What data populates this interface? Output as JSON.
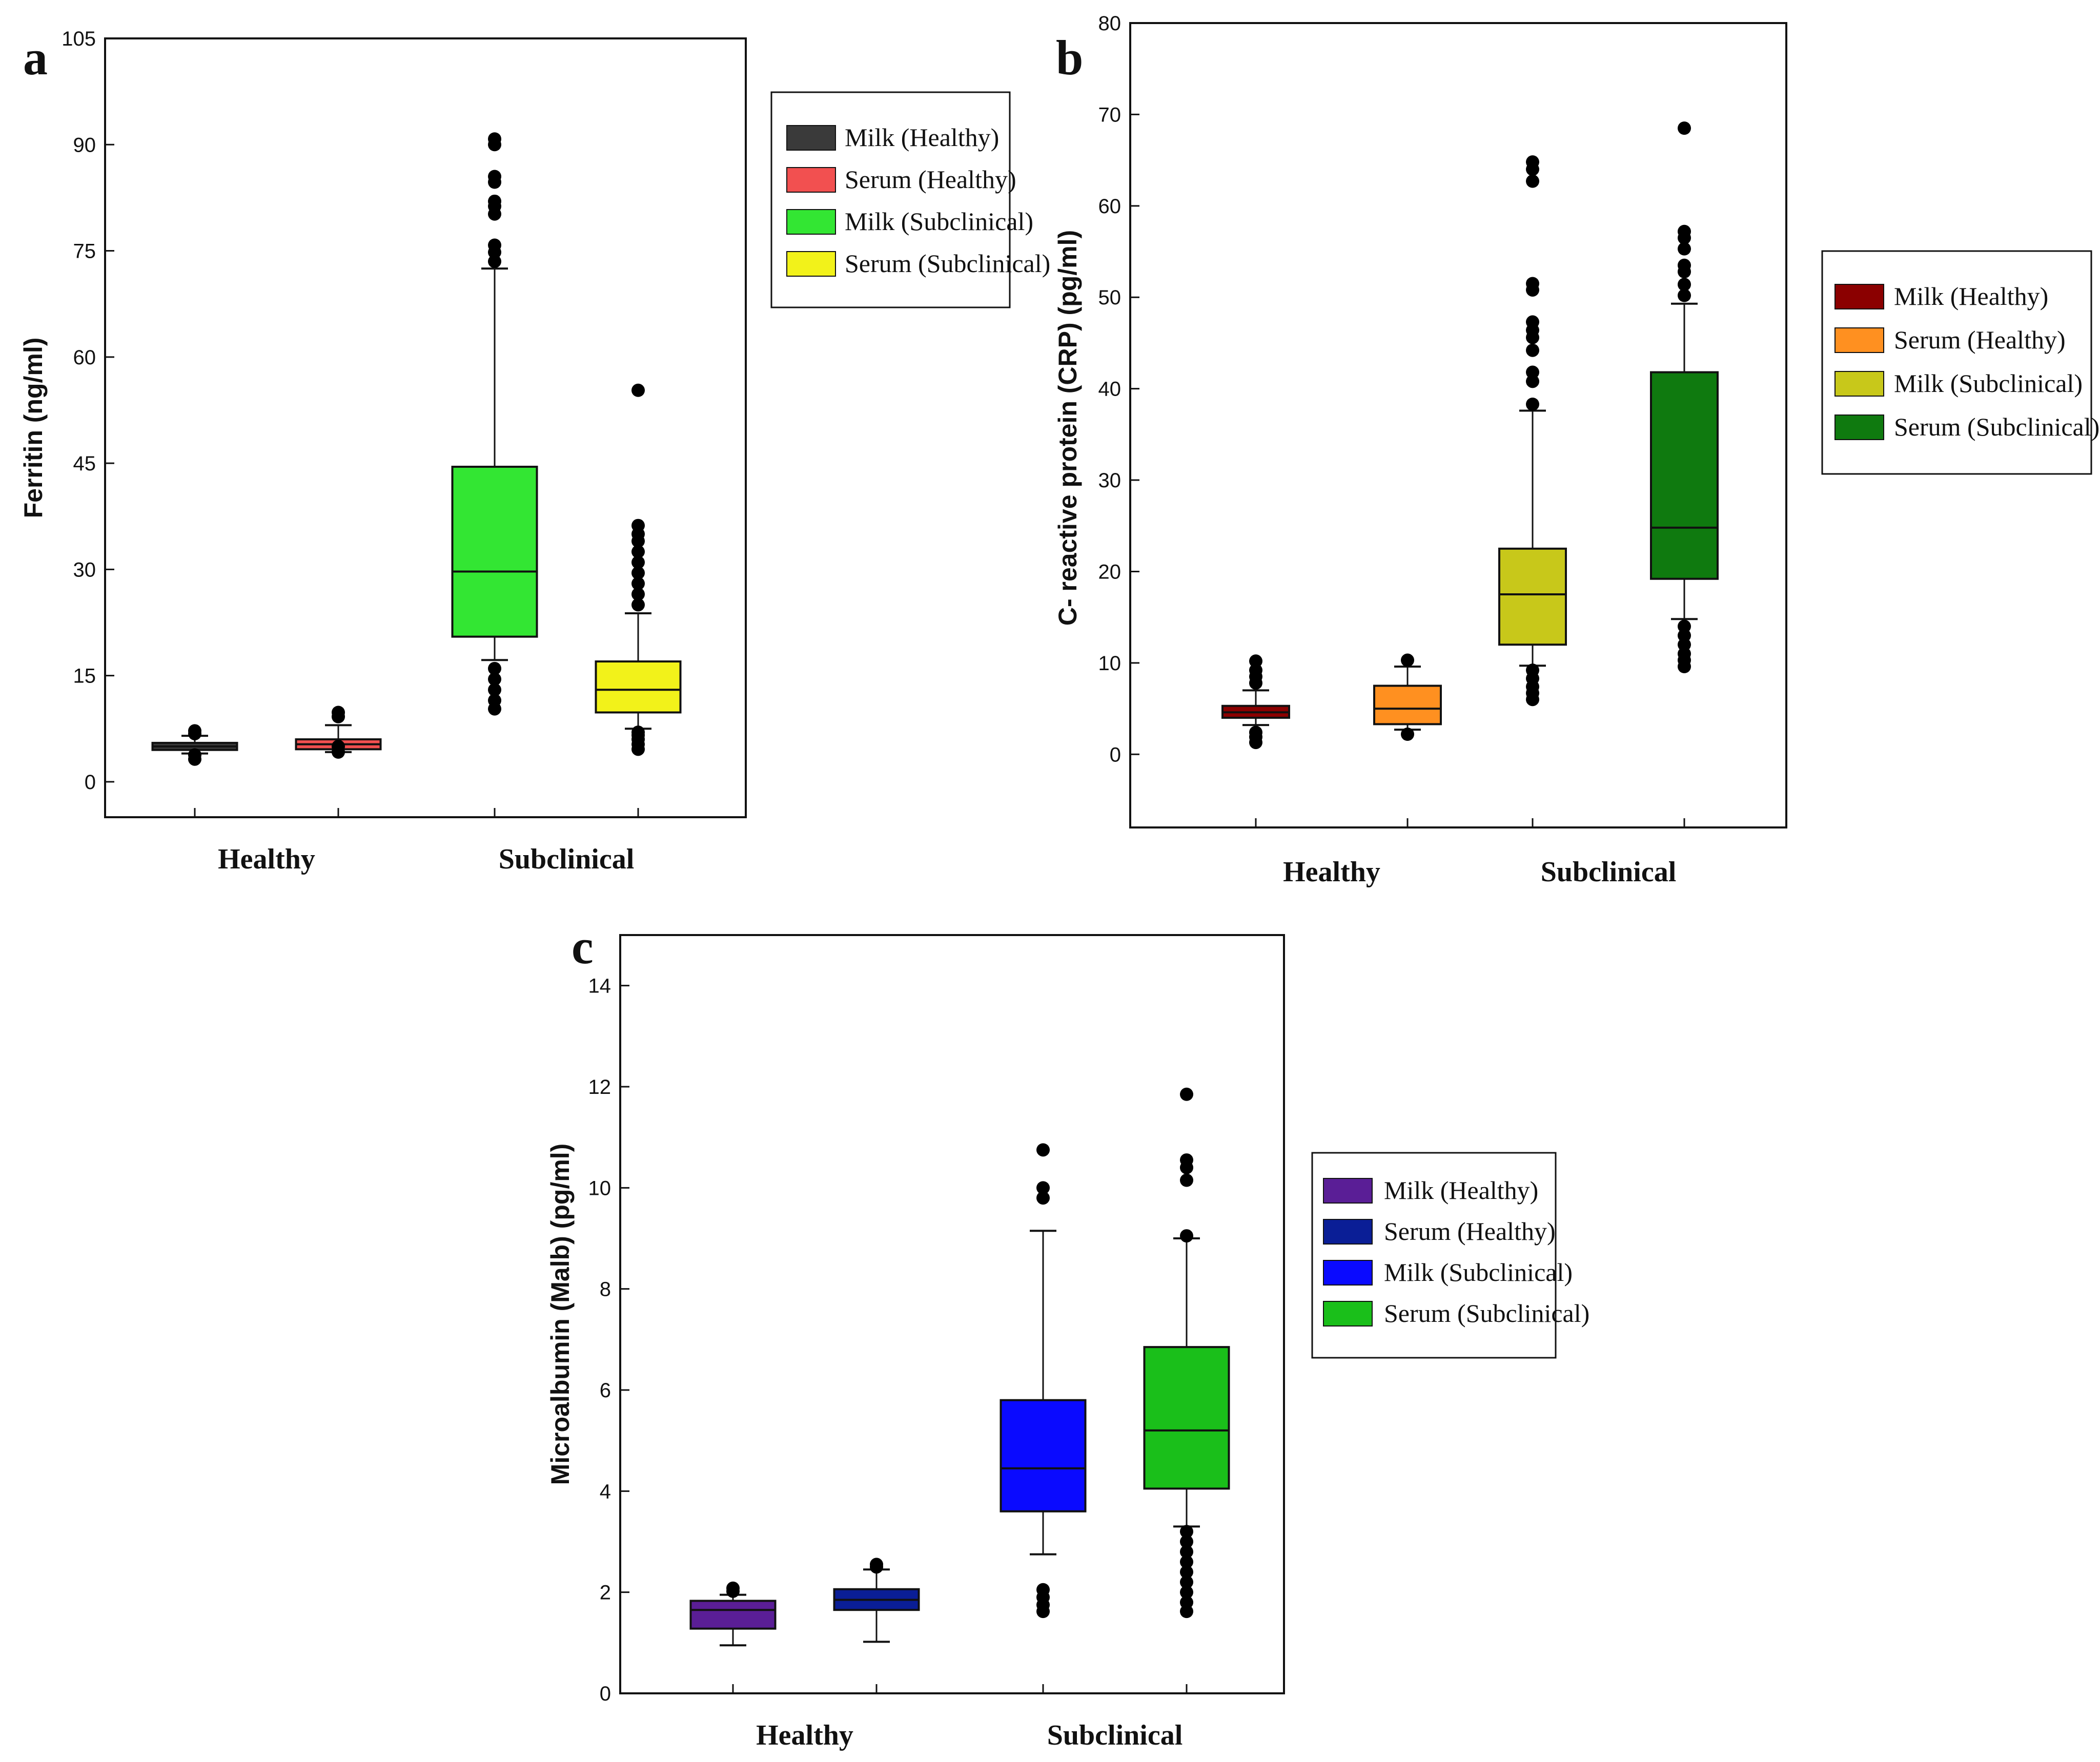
{
  "chart_data": [
    {
      "panel": "a",
      "type": "box",
      "ylabel": "Ferritin (ng/ml)",
      "ylim": [
        -5,
        105
      ],
      "yticks": [
        0,
        15,
        30,
        45,
        60,
        75,
        90,
        105
      ],
      "categories": [
        "Healthy",
        "Subclinical"
      ],
      "legend": [
        "Milk (Healthy)",
        "Serum (Healthy)",
        "Milk (Subclinical)",
        "Serum (Subclinical)"
      ],
      "colors": [
        "#3a3a3a",
        "#f25050",
        "#33e633",
        "#f2f21a"
      ],
      "boxes": [
        {
          "name": "Milk (Healthy)",
          "group": 0,
          "offset": -1,
          "q1": 4.5,
          "median": 5.0,
          "q3": 5.5,
          "whislo": 4.0,
          "whishi": 6.5,
          "fliers": [
            3.2,
            3.8,
            6.8,
            7.2
          ]
        },
        {
          "name": "Serum (Healthy)",
          "group": 0,
          "offset": 1,
          "q1": 4.6,
          "median": 5.3,
          "q3": 6.0,
          "whislo": 4.2,
          "whishi": 8.0,
          "fliers": [
            4.2,
            5.0,
            9.2,
            9.8
          ]
        },
        {
          "name": "Milk (Subclinical)",
          "group": 1,
          "offset": -1,
          "q1": 20.5,
          "median": 29.7,
          "q3": 44.5,
          "whislo": 17.2,
          "whishi": 72.5,
          "fliers": [
            10.3,
            11.5,
            13.0,
            14.5,
            16.0,
            73.5,
            74.8,
            75.8,
            80.2,
            81.3,
            82.0,
            84.7,
            85.5,
            90.0,
            90.8
          ]
        },
        {
          "name": "Serum (Subclinical)",
          "group": 1,
          "offset": 1,
          "q1": 9.8,
          "median": 13.0,
          "q3": 17.0,
          "whislo": 7.5,
          "whishi": 23.8,
          "fliers": [
            4.6,
            5.3,
            6.0,
            6.6,
            7.0,
            25.0,
            26.5,
            28.0,
            29.5,
            31.0,
            32.5,
            34.0,
            35.0,
            36.2,
            55.3
          ]
        }
      ]
    },
    {
      "panel": "b",
      "type": "box",
      "ylabel": "C- reactive protein (CRP) (pg/ml)",
      "ylim": [
        -8,
        80
      ],
      "yticks": [
        0,
        10,
        20,
        30,
        40,
        50,
        60,
        70,
        80
      ],
      "categories": [
        "Healthy",
        "Subclinical"
      ],
      "legend": [
        "Milk (Healthy)",
        "Serum (Healthy)",
        "Milk (Subclinical)",
        "Serum (Subclinical)"
      ],
      "colors": [
        "#8b0000",
        "#ff9020",
        "#c8c81a",
        "#0f7a0f"
      ],
      "boxes": [
        {
          "name": "Milk (Healthy)",
          "group": 0,
          "offset": -1,
          "q1": 4.0,
          "median": 4.6,
          "q3": 5.3,
          "whislo": 3.2,
          "whishi": 7.0,
          "fliers": [
            1.3,
            1.9,
            2.4,
            7.8,
            8.5,
            9.2,
            10.2
          ]
        },
        {
          "name": "Serum (Healthy)",
          "group": 0,
          "offset": 1,
          "q1": 3.3,
          "median": 5.0,
          "q3": 7.5,
          "whislo": 2.7,
          "whishi": 9.6,
          "fliers": [
            2.2,
            10.3
          ]
        },
        {
          "name": "Milk (Subclinical)",
          "group": 1,
          "offset": -1,
          "q1": 12.0,
          "median": 17.5,
          "q3": 22.5,
          "whislo": 9.7,
          "whishi": 37.6,
          "fliers": [
            6.0,
            6.7,
            7.4,
            8.3,
            9.2,
            38.3,
            40.8,
            41.8,
            44.2,
            45.6,
            46.4,
            47.3,
            50.8,
            51.5,
            62.7,
            64.0,
            64.8
          ]
        },
        {
          "name": "Serum (Subclinical)",
          "group": 1,
          "offset": 1,
          "q1": 19.2,
          "median": 24.8,
          "q3": 41.8,
          "whislo": 14.8,
          "whishi": 49.3,
          "fliers": [
            9.6,
            10.3,
            11.0,
            12.0,
            13.0,
            14.0,
            50.2,
            51.4,
            52.8,
            53.5,
            55.3,
            56.5,
            57.2,
            68.5
          ]
        }
      ]
    },
    {
      "panel": "c",
      "type": "box",
      "ylabel": "Microalbumin (Malb) (pg/ml)",
      "ylim": [
        0,
        15
      ],
      "yticks": [
        0,
        2,
        4,
        6,
        8,
        10,
        12,
        14
      ],
      "categories": [
        "Healthy",
        "Subclinical"
      ],
      "legend": [
        "Milk (Healthy)",
        "Serum (Healthy)",
        "Milk (Subclinical)",
        "Serum (Subclinical)"
      ],
      "colors": [
        "#5a1e96",
        "#0a1e96",
        "#0a0aff",
        "#1abf1a"
      ],
      "boxes": [
        {
          "name": "Milk (Healthy)",
          "group": 0,
          "offset": -1,
          "q1": 1.28,
          "median": 1.65,
          "q3": 1.83,
          "whislo": 0.95,
          "whishi": 1.95,
          "fliers": [
            2.02,
            2.08
          ]
        },
        {
          "name": "Serum (Healthy)",
          "group": 0,
          "offset": 1,
          "q1": 1.65,
          "median": 1.85,
          "q3": 2.06,
          "whislo": 1.02,
          "whishi": 2.45,
          "fliers": [
            2.5,
            2.55
          ]
        },
        {
          "name": "Milk (Subclinical)",
          "group": 1,
          "offset": -1,
          "q1": 3.6,
          "median": 4.45,
          "q3": 5.8,
          "whislo": 2.75,
          "whishi": 9.15,
          "fliers": [
            1.62,
            1.75,
            1.9,
            2.05,
            9.8,
            10.0,
            10.75
          ]
        },
        {
          "name": "Serum (Subclinical)",
          "group": 1,
          "offset": 1,
          "q1": 4.05,
          "median": 5.2,
          "q3": 6.85,
          "whislo": 3.3,
          "whishi": 9.0,
          "fliers": [
            1.62,
            1.8,
            2.0,
            2.2,
            2.4,
            2.6,
            2.8,
            3.0,
            3.2,
            9.05,
            10.15,
            10.4,
            10.55,
            11.85
          ]
        }
      ]
    }
  ]
}
